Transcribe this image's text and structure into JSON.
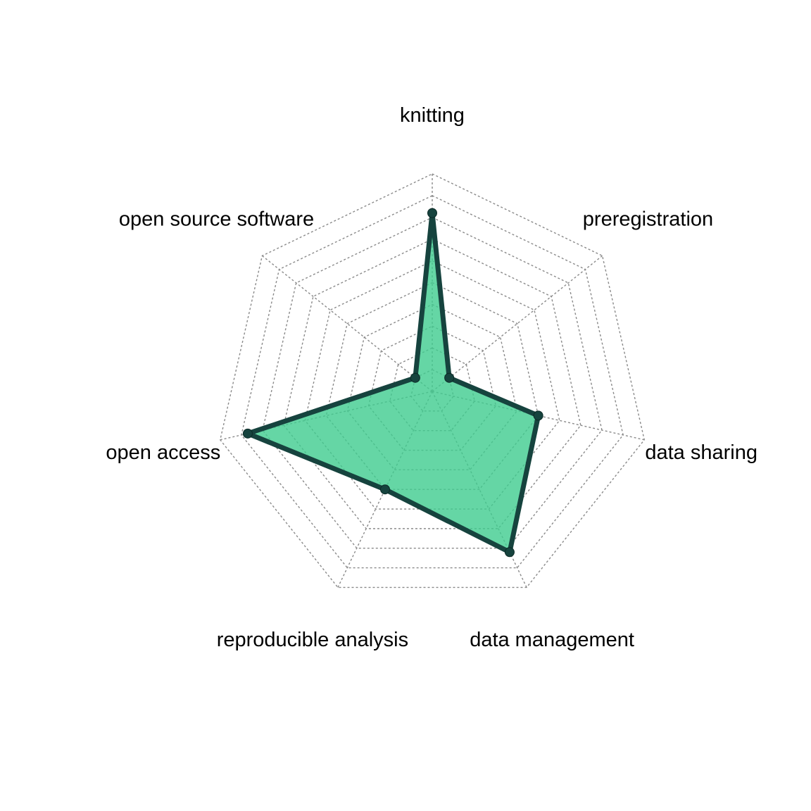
{
  "chart_data": {
    "type": "radar",
    "title": "",
    "axes": [
      "knitting",
      "preregistration",
      "data sharing",
      "data management",
      "reproducible analysis",
      "open access",
      "open source software"
    ],
    "series": [
      {
        "values": [
          0.82,
          0.1,
          0.5,
          0.82,
          0.5,
          0.87,
          0.1
        ]
      }
    ],
    "range": [
      0,
      1
    ],
    "grid_levels": 10,
    "grid": true,
    "legend": "none",
    "colors": {
      "fill": "#3ECC8F",
      "line": "#16433E",
      "grid": "#8A8A8A",
      "text": "#000000"
    }
  }
}
